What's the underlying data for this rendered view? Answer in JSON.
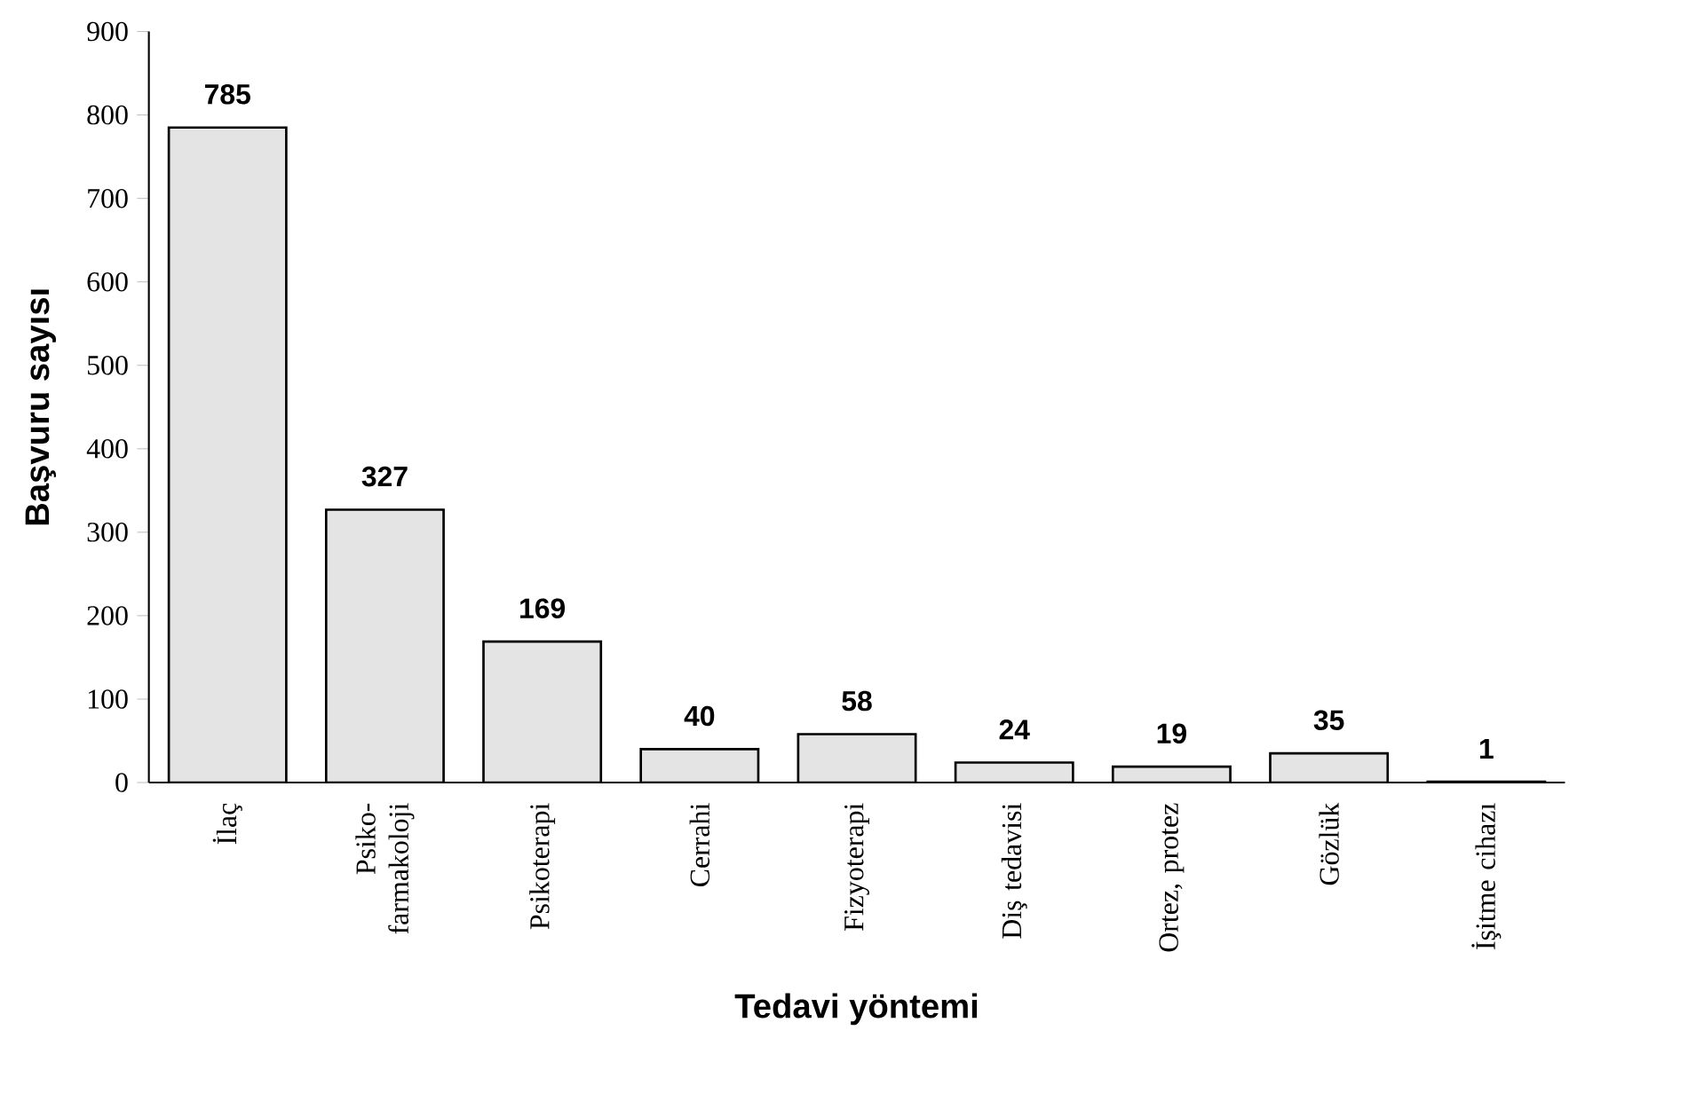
{
  "chart_data": {
    "type": "bar",
    "xlabel": "Tedavi yöntemi",
    "ylabel": "Başvuru sayısı",
    "categories": [
      "İlaç",
      "Psiko- farmakoloji",
      "Psikoterapi",
      "Cerrahi",
      "Fizyoterapi",
      "Diş tedavisi",
      "Ortez, protez",
      "Gözlük",
      "İşitme cihazı"
    ],
    "values": [
      785,
      327,
      169,
      40,
      58,
      24,
      19,
      35,
      1
    ],
    "color": "#e4e4e4",
    "ylim": [
      0,
      900
    ],
    "yticks": [
      0,
      100,
      200,
      300,
      400,
      500,
      600,
      700,
      800,
      900
    ],
    "data_labels": true
  }
}
